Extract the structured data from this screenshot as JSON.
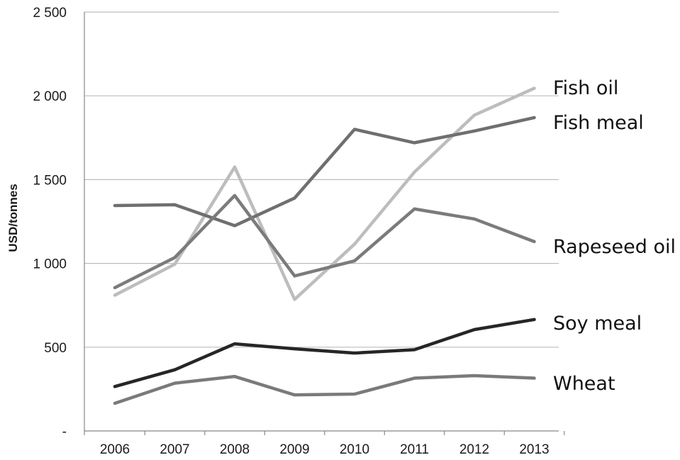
{
  "chart_data": {
    "type": "line",
    "title": "",
    "xlabel": "",
    "ylabel": "USD/tonnes",
    "ylim": [
      0,
      2500
    ],
    "y_ticks": [
      {
        "value": 0,
        "label": "-"
      },
      {
        "value": 500,
        "label": "500"
      },
      {
        "value": 1000,
        "label": "1 000"
      },
      {
        "value": 1500,
        "label": "1 500"
      },
      {
        "value": 2000,
        "label": "2 000"
      },
      {
        "value": 2500,
        "label": "2 500"
      }
    ],
    "x": [
      "2006",
      "2007",
      "2008",
      "2009",
      "2010",
      "2011",
      "2012",
      "2013"
    ],
    "grid": "horizontal",
    "legend": "labels at line ends (right)",
    "series": [
      {
        "name": "Fish oil",
        "color": "#bdbdbd",
        "values": [
          810,
          995,
          1575,
          785,
          1115,
          1545,
          1885,
          2045
        ]
      },
      {
        "name": "Fish meal",
        "color": "#6f6f6f",
        "values": [
          1345,
          1350,
          1225,
          1390,
          1800,
          1720,
          1790,
          1870
        ]
      },
      {
        "name": "Rapeseed oil",
        "color": "#7b7b7b",
        "values": [
          855,
          1035,
          1405,
          925,
          1015,
          1325,
          1265,
          1130
        ]
      },
      {
        "name": "Soy meal",
        "color": "#262626",
        "values": [
          265,
          365,
          520,
          490,
          465,
          485,
          605,
          665
        ]
      },
      {
        "name": "Wheat",
        "color": "#7a7a7a",
        "values": [
          165,
          285,
          325,
          215,
          220,
          315,
          330,
          315
        ]
      }
    ]
  }
}
